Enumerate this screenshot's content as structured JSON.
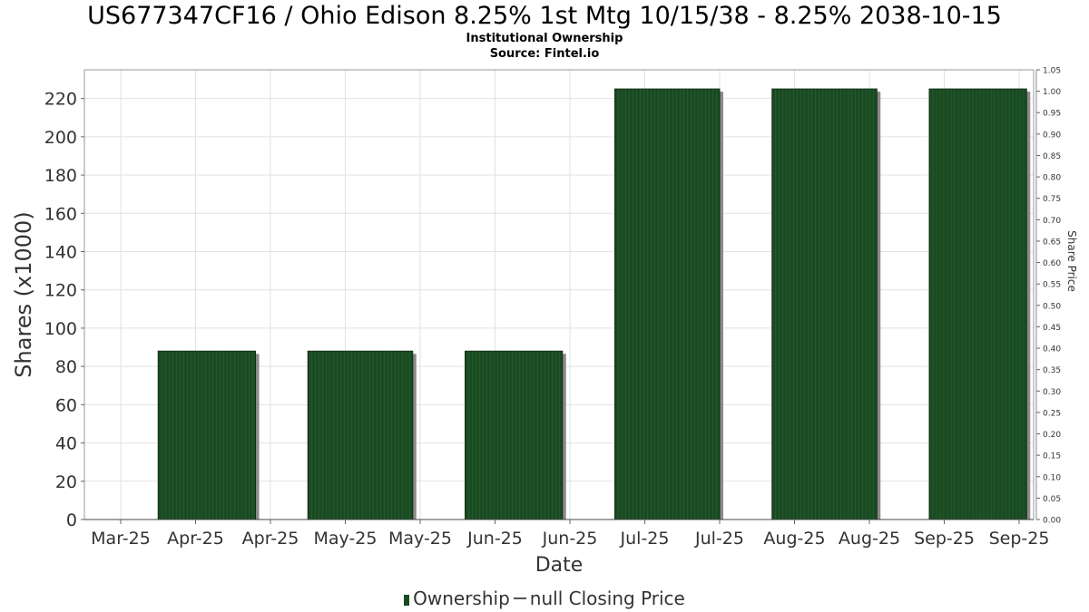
{
  "chart_data": {
    "type": "bar",
    "title": "US677347CF16 / Ohio Edison 8.25% 1st Mtg 10/15/38 - 8.25% 2038-10-15",
    "subtitle": "Institutional Ownership",
    "source": "Source: Fintel.io",
    "xlabel": "Date",
    "ylabel": "Shares (x1000)",
    "y2label": "Share Price",
    "x_ticks": [
      "Mar-25",
      "Apr-25",
      "Apr-25",
      "May-25",
      "May-25",
      "Jun-25",
      "Jun-25",
      "Jul-25",
      "Jul-25",
      "Aug-25",
      "Aug-25",
      "Sep-25",
      "Sep-25"
    ],
    "y_ticks": [
      "0",
      "20",
      "40",
      "60",
      "80",
      "100",
      "120",
      "140",
      "160",
      "180",
      "200",
      "220"
    ],
    "y2_ticks": [
      "0.00",
      "0.05",
      "0.10",
      "0.15",
      "0.20",
      "0.25",
      "0.30",
      "0.35",
      "0.40",
      "0.45",
      "0.50",
      "0.55",
      "0.60",
      "0.65",
      "0.70",
      "0.75",
      "0.80",
      "0.85",
      "0.90",
      "0.95",
      "1.00",
      "1.05"
    ],
    "ylim": [
      0,
      235
    ],
    "y2lim": [
      0,
      1.05
    ],
    "series": [
      {
        "name": "Ownership",
        "color": "#1a4a22",
        "bars": [
          {
            "start_tick": 0.5,
            "end_tick": 1.8,
            "value": 88
          },
          {
            "start_tick": 2.5,
            "end_tick": 3.9,
            "value": 88
          },
          {
            "start_tick": 4.6,
            "end_tick": 5.9,
            "value": 88
          },
          {
            "start_tick": 6.6,
            "end_tick": 8.0,
            "value": 225
          },
          {
            "start_tick": 8.7,
            "end_tick": 10.1,
            "value": 225
          },
          {
            "start_tick": 10.8,
            "end_tick": 12.1,
            "value": 225
          }
        ]
      },
      {
        "name": "null Closing Price",
        "color": "#555555",
        "values": []
      }
    ],
    "grid": true,
    "legend_position": "bottom"
  }
}
